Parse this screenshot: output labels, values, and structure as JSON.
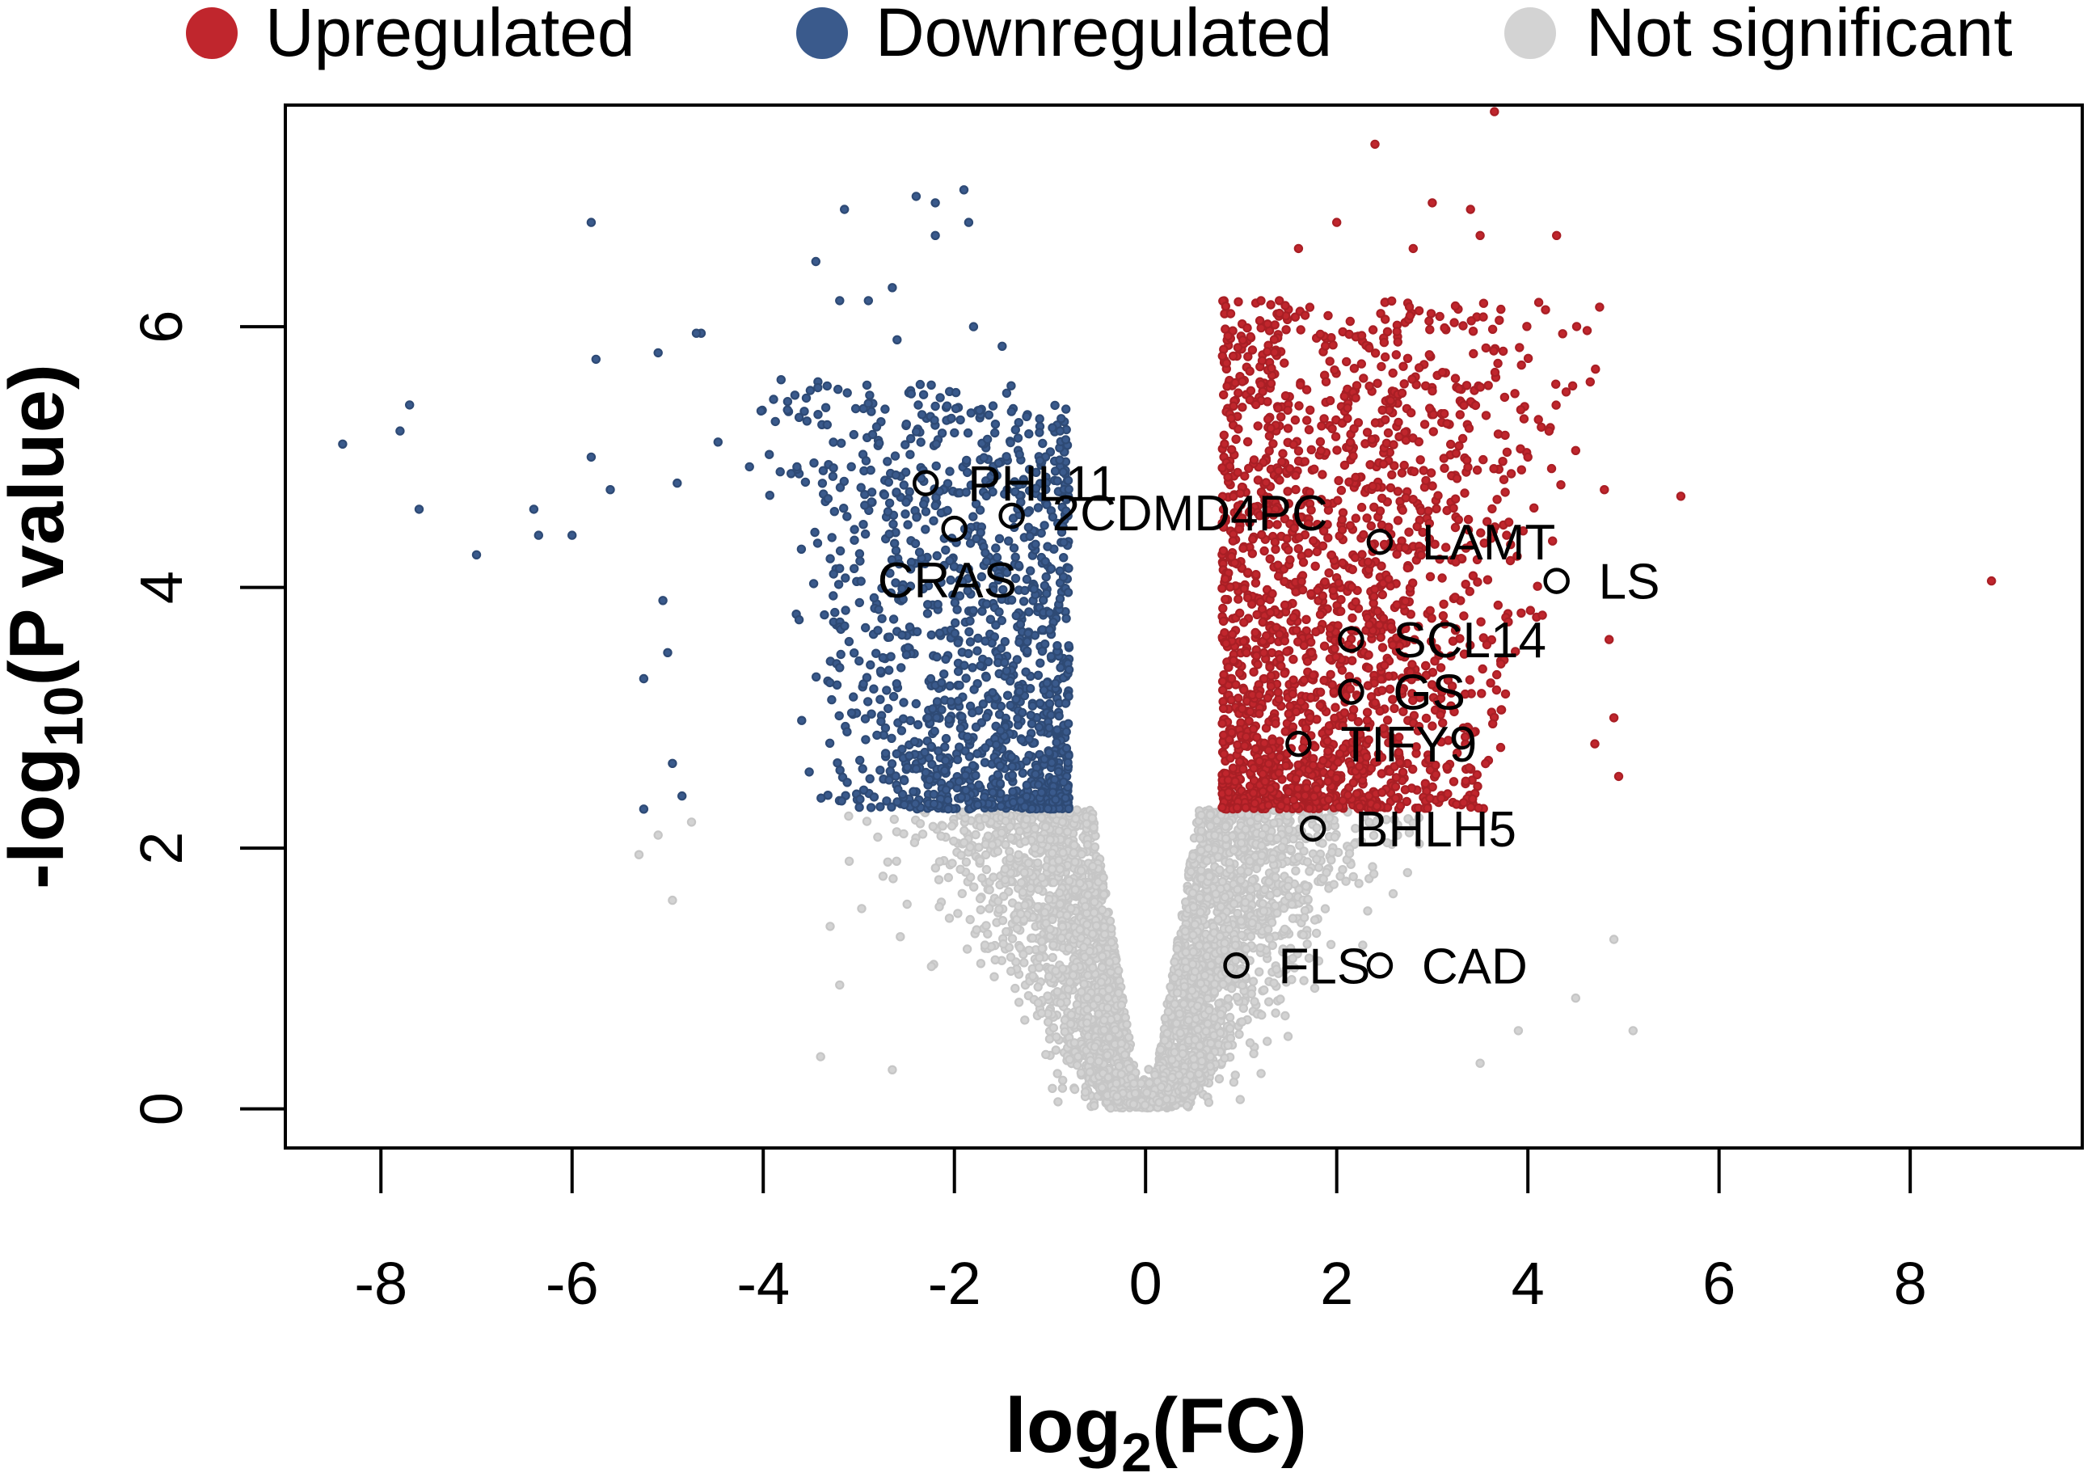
{
  "chart_data": {
    "type": "scatter",
    "subtype": "volcano",
    "title": "",
    "xlabel": {
      "base": "log",
      "sub": "2",
      "rest": "(FC)"
    },
    "ylabel": {
      "pre": "-log",
      "sub": "10",
      "rest": "(P value)"
    },
    "xlim": [
      -9,
      9.8
    ],
    "ylim": [
      -0.3,
      7.7
    ],
    "xticks": [
      -8,
      -6,
      -4,
      -2,
      0,
      2,
      4,
      6,
      8
    ],
    "xtick_labels": [
      "-8",
      "-6",
      "-4",
      "-2",
      "0",
      "2",
      "4",
      "6",
      "8"
    ],
    "yticks": [
      0,
      2,
      4,
      6
    ],
    "ytick_labels": [
      "0",
      "2",
      "4",
      "6"
    ],
    "thresholds": {
      "log2fc": 0.8,
      "neg_log10_p": 2.3
    },
    "colors": {
      "up": "#c0262d",
      "down": "#3a5a8c",
      "ns": "#d3d3d3",
      "highlight": "#000000"
    },
    "legend": [
      {
        "label": "Upregulated",
        "color": "#c0262d"
      },
      {
        "label": "Downregulated",
        "color": "#3a5a8c"
      },
      {
        "label": "Not significant",
        "color": "#d3d3d3"
      }
    ],
    "series": [
      {
        "name": "Downregulated",
        "points": [
          [
            -8.4,
            5.1
          ],
          [
            -7.8,
            5.2
          ],
          [
            -7.7,
            5.4
          ],
          [
            -7.6,
            4.6
          ],
          [
            -7.0,
            4.25
          ],
          [
            -6.4,
            4.6
          ],
          [
            -6.35,
            4.4
          ],
          [
            -6.0,
            4.4
          ],
          [
            -5.8,
            6.8
          ],
          [
            -5.8,
            5.0
          ],
          [
            -5.75,
            5.75
          ],
          [
            -5.6,
            4.75
          ],
          [
            -5.1,
            5.8
          ],
          [
            -5.05,
            3.9
          ],
          [
            -5.0,
            3.5
          ],
          [
            -4.9,
            4.8
          ],
          [
            -4.65,
            5.95
          ],
          [
            -4.7,
            5.95
          ],
          [
            -5.25,
            3.3
          ],
          [
            -5.25,
            2.3
          ],
          [
            -4.95,
            2.65
          ],
          [
            -4.85,
            2.4
          ],
          [
            -3.45,
            6.5
          ],
          [
            -3.15,
            6.9
          ],
          [
            -2.65,
            6.3
          ],
          [
            -2.2,
            6.95
          ],
          [
            -1.9,
            7.05
          ],
          [
            -1.85,
            6.8
          ],
          [
            -2.2,
            6.7
          ],
          [
            -2.4,
            7.0
          ],
          [
            -3.2,
            6.2
          ],
          [
            -2.9,
            6.2
          ],
          [
            -2.6,
            5.9
          ],
          [
            -1.5,
            5.85
          ],
          [
            -1.8,
            6.0
          ]
        ]
      },
      {
        "name": "Upregulated",
        "points": [
          [
            3.65,
            7.65
          ],
          [
            2.4,
            7.4
          ],
          [
            3.0,
            6.95
          ],
          [
            3.4,
            6.9
          ],
          [
            3.5,
            6.7
          ],
          [
            4.3,
            6.7
          ],
          [
            4.75,
            6.15
          ],
          [
            5.6,
            4.7
          ],
          [
            4.8,
            4.75
          ],
          [
            8.85,
            4.05
          ],
          [
            4.85,
            3.6
          ],
          [
            4.9,
            3.0
          ],
          [
            4.95,
            2.55
          ],
          [
            4.7,
            2.8
          ],
          [
            2.0,
            6.8
          ],
          [
            1.6,
            6.6
          ],
          [
            2.8,
            6.6
          ],
          [
            1.4,
            6.2
          ],
          [
            4.0,
            5.0
          ],
          [
            4.4,
            5.5
          ],
          [
            4.5,
            5.05
          ]
        ]
      },
      {
        "name": "Not significant",
        "points": [
          [
            -5.3,
            1.95
          ],
          [
            -5.1,
            2.1
          ],
          [
            -4.95,
            1.6
          ],
          [
            -4.75,
            2.2
          ],
          [
            -3.3,
            1.4
          ],
          [
            -3.1,
            1.9
          ],
          [
            -3.2,
            0.95
          ],
          [
            -3.4,
            0.4
          ],
          [
            -2.65,
            0.3
          ],
          [
            4.5,
            0.85
          ],
          [
            4.9,
            1.3
          ],
          [
            5.1,
            0.6
          ],
          [
            3.5,
            0.35
          ],
          [
            3.9,
            0.6
          ]
        ]
      }
    ],
    "highlighted_genes": [
      {
        "label": "PHL11",
        "x": -2.3,
        "y": 4.8
      },
      {
        "label": "2CDMD4PC",
        "x": -1.4,
        "y": 4.55
      },
      {
        "label": "CRAS",
        "x": -2.0,
        "y": 4.45
      },
      {
        "label": "LAMT",
        "x": 2.45,
        "y": 4.35
      },
      {
        "label": "LS",
        "x": 4.3,
        "y": 4.05
      },
      {
        "label": "SCL14",
        "x": 2.15,
        "y": 3.6
      },
      {
        "label": "GS",
        "x": 2.15,
        "y": 3.2
      },
      {
        "label": "TIFY9",
        "x": 1.6,
        "y": 2.8
      },
      {
        "label": "BHLH5",
        "x": 1.75,
        "y": 2.15
      },
      {
        "label": "FLS",
        "x": 0.95,
        "y": 1.1
      },
      {
        "label": "CAD",
        "x": 2.45,
        "y": 1.1
      }
    ]
  }
}
